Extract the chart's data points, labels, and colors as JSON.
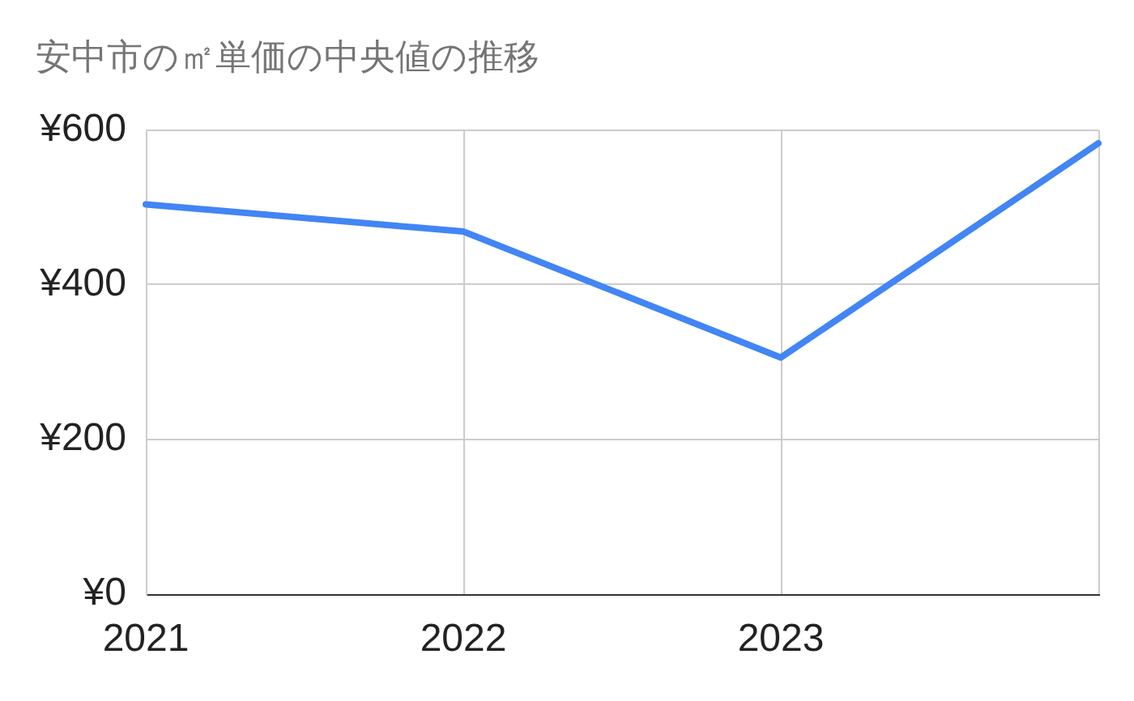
{
  "chart_data": {
    "type": "line",
    "title": "安中市の㎡単価の中央値の推移",
    "categories": [
      "2021",
      "2022",
      "2023",
      null
    ],
    "values": [
      504,
      469,
      306,
      583
    ],
    "color": "#4285f4",
    "ylim": [
      0,
      600
    ],
    "yticks": [
      {
        "value": 0,
        "label": "¥0"
      },
      {
        "value": 200,
        "label": "¥200"
      },
      {
        "value": 400,
        "label": "¥400"
      },
      {
        "value": 600,
        "label": "¥600"
      }
    ],
    "grid": true,
    "marker": "none"
  }
}
